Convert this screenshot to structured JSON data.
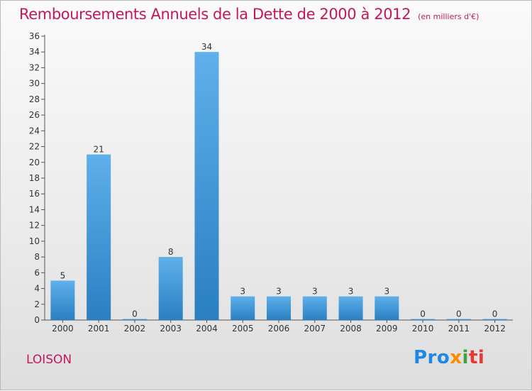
{
  "title": "Remboursements Annuels de la Dette de 2000 à 2012",
  "subtitle": "(en milliers d'€)",
  "commune": "LOISON",
  "logo": {
    "part1": "Pro",
    "part2": "x",
    "part3": "i",
    "part4": "ti"
  },
  "colors": {
    "title": "#c2185b",
    "bar_top": "#5fb0eb",
    "bar_bottom": "#2a7fc1",
    "grid": "#cfcfcf"
  },
  "chart_data": {
    "type": "bar",
    "title": "Remboursements Annuels de la Dette de 2000 à 2012",
    "subtitle": "(en milliers d'€)",
    "xlabel": "",
    "ylabel": "",
    "categories": [
      "2000",
      "2001",
      "2002",
      "2003",
      "2004",
      "2005",
      "2006",
      "2007",
      "2008",
      "2009",
      "2010",
      "2011",
      "2012"
    ],
    "values": [
      5,
      21,
      0,
      8,
      34,
      3,
      3,
      3,
      3,
      3,
      0,
      0,
      0
    ],
    "ylim": [
      0,
      36
    ],
    "yticks": [
      0,
      2,
      4,
      6,
      8,
      10,
      12,
      14,
      16,
      18,
      20,
      22,
      24,
      26,
      28,
      30,
      32,
      34,
      36
    ],
    "grid": false,
    "legend": "none"
  }
}
